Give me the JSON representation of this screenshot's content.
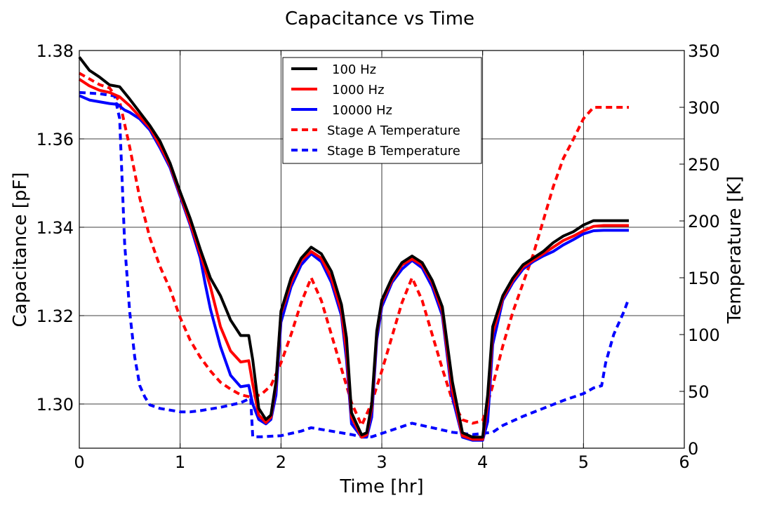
{
  "chart_data": {
    "type": "line",
    "title": "Capacitance vs Time",
    "xlabel": "Time [hr]",
    "ylabel": "Capacitance [pF]",
    "y2label": "Temperature [K]",
    "xlim": [
      0,
      6
    ],
    "ylim": [
      1.29,
      1.38
    ],
    "y2lim": [
      0,
      350
    ],
    "xticks": [
      0,
      1,
      2,
      3,
      4,
      5,
      6
    ],
    "yticks": [
      1.3,
      1.32,
      1.34,
      1.36,
      1.38
    ],
    "ytick_labels": [
      "1.30",
      "1.32",
      "1.34",
      "1.36",
      "1.38"
    ],
    "y2ticks": [
      0,
      50,
      100,
      150,
      200,
      250,
      300,
      350
    ],
    "grid": true,
    "legend": "upper-center",
    "series": [
      {
        "name": "100 Hz",
        "axis": "left",
        "color": "#000000",
        "dash": "solid",
        "points": [
          [
            0,
            1.3785
          ],
          [
            0.1,
            1.3755
          ],
          [
            0.2,
            1.374
          ],
          [
            0.3,
            1.3722
          ],
          [
            0.35,
            1.372
          ],
          [
            0.4,
            1.3718
          ],
          [
            0.5,
            1.369
          ],
          [
            0.6,
            1.366
          ],
          [
            0.7,
            1.363
          ],
          [
            0.8,
            1.3595
          ],
          [
            0.9,
            1.3545
          ],
          [
            1.0,
            1.348
          ],
          [
            1.1,
            1.342
          ],
          [
            1.2,
            1.335
          ],
          [
            1.3,
            1.3285
          ],
          [
            1.4,
            1.3245
          ],
          [
            1.5,
            1.319
          ],
          [
            1.6,
            1.3155
          ],
          [
            1.68,
            1.3155
          ],
          [
            1.72,
            1.31
          ],
          [
            1.78,
            1.299
          ],
          [
            1.85,
            1.2965
          ],
          [
            1.9,
            1.2975
          ],
          [
            1.95,
            1.305
          ],
          [
            2.0,
            1.321
          ],
          [
            2.1,
            1.3285
          ],
          [
            2.2,
            1.333
          ],
          [
            2.3,
            1.3355
          ],
          [
            2.4,
            1.334
          ],
          [
            2.5,
            1.33
          ],
          [
            2.6,
            1.3225
          ],
          [
            2.65,
            1.315
          ],
          [
            2.7,
            1.298
          ],
          [
            2.8,
            1.293
          ],
          [
            2.85,
            1.2935
          ],
          [
            2.9,
            1.3
          ],
          [
            2.95,
            1.3165
          ],
          [
            3.0,
            1.3235
          ],
          [
            3.1,
            1.3285
          ],
          [
            3.2,
            1.332
          ],
          [
            3.3,
            1.3335
          ],
          [
            3.4,
            1.332
          ],
          [
            3.5,
            1.328
          ],
          [
            3.6,
            1.322
          ],
          [
            3.7,
            1.305
          ],
          [
            3.8,
            1.2935
          ],
          [
            3.9,
            1.2925
          ],
          [
            4.0,
            1.2925
          ],
          [
            4.05,
            1.302
          ],
          [
            4.1,
            1.3175
          ],
          [
            4.2,
            1.3245
          ],
          [
            4.3,
            1.3285
          ],
          [
            4.4,
            1.3315
          ],
          [
            4.5,
            1.333
          ],
          [
            4.6,
            1.3345
          ],
          [
            4.7,
            1.3365
          ],
          [
            4.8,
            1.338
          ],
          [
            4.9,
            1.339
          ],
          [
            5.0,
            1.3405
          ],
          [
            5.1,
            1.3415
          ],
          [
            5.2,
            1.3415
          ],
          [
            5.45,
            1.3415
          ]
        ]
      },
      {
        "name": "1000 Hz",
        "axis": "left",
        "color": "#ff0000",
        "dash": "solid",
        "points": [
          [
            0,
            1.3735
          ],
          [
            0.1,
            1.372
          ],
          [
            0.2,
            1.371
          ],
          [
            0.3,
            1.3705
          ],
          [
            0.4,
            1.3695
          ],
          [
            0.5,
            1.3675
          ],
          [
            0.6,
            1.365
          ],
          [
            0.7,
            1.3625
          ],
          [
            0.8,
            1.3585
          ],
          [
            0.9,
            1.354
          ],
          [
            1.0,
            1.3475
          ],
          [
            1.1,
            1.341
          ],
          [
            1.2,
            1.334
          ],
          [
            1.3,
            1.3265
          ],
          [
            1.4,
            1.3175
          ],
          [
            1.5,
            1.312
          ],
          [
            1.6,
            1.3095
          ],
          [
            1.68,
            1.3098
          ],
          [
            1.72,
            1.3045
          ],
          [
            1.78,
            1.2975
          ],
          [
            1.85,
            1.2958
          ],
          [
            1.9,
            1.297
          ],
          [
            1.95,
            1.3045
          ],
          [
            2.0,
            1.3205
          ],
          [
            2.1,
            1.3275
          ],
          [
            2.2,
            1.3325
          ],
          [
            2.3,
            1.3345
          ],
          [
            2.4,
            1.333
          ],
          [
            2.5,
            1.3285
          ],
          [
            2.6,
            1.321
          ],
          [
            2.65,
            1.312
          ],
          [
            2.7,
            1.297
          ],
          [
            2.8,
            1.2925
          ],
          [
            2.85,
            1.293
          ],
          [
            2.9,
            1.299
          ],
          [
            2.95,
            1.316
          ],
          [
            3.0,
            1.323
          ],
          [
            3.1,
            1.328
          ],
          [
            3.2,
            1.3315
          ],
          [
            3.3,
            1.3328
          ],
          [
            3.4,
            1.3315
          ],
          [
            3.5,
            1.3275
          ],
          [
            3.6,
            1.321
          ],
          [
            3.7,
            1.303
          ],
          [
            3.8,
            1.2928
          ],
          [
            3.9,
            1.292
          ],
          [
            4.0,
            1.292
          ],
          [
            4.05,
            1.3
          ],
          [
            4.1,
            1.316
          ],
          [
            4.2,
            1.324
          ],
          [
            4.3,
            1.328
          ],
          [
            4.4,
            1.331
          ],
          [
            4.5,
            1.3325
          ],
          [
            4.6,
            1.334
          ],
          [
            4.7,
            1.3355
          ],
          [
            4.8,
            1.337
          ],
          [
            4.9,
            1.338
          ],
          [
            5.0,
            1.3392
          ],
          [
            5.1,
            1.3402
          ],
          [
            5.2,
            1.3404
          ],
          [
            5.45,
            1.3404
          ]
        ]
      },
      {
        "name": "10000 Hz",
        "axis": "left",
        "color": "#0000ff",
        "dash": "solid",
        "points": [
          [
            0,
            1.3698
          ],
          [
            0.1,
            1.3688
          ],
          [
            0.2,
            1.3684
          ],
          [
            0.3,
            1.368
          ],
          [
            0.38,
            1.3678
          ],
          [
            0.45,
            1.3665
          ],
          [
            0.5,
            1.366
          ],
          [
            0.6,
            1.3645
          ],
          [
            0.7,
            1.362
          ],
          [
            0.8,
            1.358
          ],
          [
            0.9,
            1.3535
          ],
          [
            1.0,
            1.347
          ],
          [
            1.1,
            1.3405
          ],
          [
            1.2,
            1.333
          ],
          [
            1.25,
            1.327
          ],
          [
            1.3,
            1.3215
          ],
          [
            1.4,
            1.313
          ],
          [
            1.5,
            1.3065
          ],
          [
            1.6,
            1.3039
          ],
          [
            1.68,
            1.3042
          ],
          [
            1.72,
            1.3
          ],
          [
            1.78,
            1.2965
          ],
          [
            1.85,
            1.2955
          ],
          [
            1.9,
            1.2965
          ],
          [
            1.95,
            1.302
          ],
          [
            2.0,
            1.3185
          ],
          [
            2.1,
            1.3265
          ],
          [
            2.2,
            1.3315
          ],
          [
            2.3,
            1.334
          ],
          [
            2.4,
            1.3322
          ],
          [
            2.5,
            1.3275
          ],
          [
            2.6,
            1.32
          ],
          [
            2.65,
            1.31
          ],
          [
            2.7,
            1.2955
          ],
          [
            2.8,
            1.2925
          ],
          [
            2.85,
            1.2925
          ],
          [
            2.9,
            1.297
          ],
          [
            2.95,
            1.3145
          ],
          [
            3.0,
            1.322
          ],
          [
            3.1,
            1.3275
          ],
          [
            3.2,
            1.3305
          ],
          [
            3.3,
            1.3325
          ],
          [
            3.4,
            1.3308
          ],
          [
            3.5,
            1.3265
          ],
          [
            3.6,
            1.32
          ],
          [
            3.7,
            1.3015
          ],
          [
            3.8,
            1.2925
          ],
          [
            3.9,
            1.2918
          ],
          [
            4.0,
            1.2918
          ],
          [
            4.05,
            1.296
          ],
          [
            4.1,
            1.3135
          ],
          [
            4.2,
            1.3235
          ],
          [
            4.3,
            1.3275
          ],
          [
            4.4,
            1.3305
          ],
          [
            4.5,
            1.3322
          ],
          [
            4.6,
            1.3335
          ],
          [
            4.7,
            1.3345
          ],
          [
            4.8,
            1.336
          ],
          [
            4.9,
            1.3372
          ],
          [
            5.0,
            1.3385
          ],
          [
            5.1,
            1.3392
          ],
          [
            5.2,
            1.3393
          ],
          [
            5.45,
            1.3393
          ]
        ]
      },
      {
        "name": "Stage A Temperature",
        "axis": "right",
        "color": "#ff0000",
        "dash": "dashed",
        "points": [
          [
            0,
            330
          ],
          [
            0.1,
            325
          ],
          [
            0.2,
            320
          ],
          [
            0.3,
            317
          ],
          [
            0.4,
            305
          ],
          [
            0.5,
            265
          ],
          [
            0.6,
            220
          ],
          [
            0.7,
            185
          ],
          [
            0.8,
            160
          ],
          [
            0.9,
            140
          ],
          [
            1.0,
            115
          ],
          [
            1.1,
            95
          ],
          [
            1.2,
            80
          ],
          [
            1.3,
            68
          ],
          [
            1.4,
            58
          ],
          [
            1.5,
            52
          ],
          [
            1.6,
            47
          ],
          [
            1.7,
            45
          ],
          [
            1.8,
            47
          ],
          [
            1.9,
            55
          ],
          [
            2.0,
            75
          ],
          [
            2.1,
            100
          ],
          [
            2.2,
            128
          ],
          [
            2.3,
            150
          ],
          [
            2.4,
            130
          ],
          [
            2.5,
            100
          ],
          [
            2.6,
            70
          ],
          [
            2.7,
            40
          ],
          [
            2.8,
            20
          ],
          [
            2.9,
            40
          ],
          [
            3.0,
            68
          ],
          [
            3.1,
            98
          ],
          [
            3.2,
            128
          ],
          [
            3.3,
            150
          ],
          [
            3.4,
            130
          ],
          [
            3.5,
            100
          ],
          [
            3.6,
            70
          ],
          [
            3.7,
            42
          ],
          [
            3.8,
            25
          ],
          [
            3.9,
            22
          ],
          [
            4.0,
            24
          ],
          [
            4.1,
            55
          ],
          [
            4.2,
            90
          ],
          [
            4.3,
            120
          ],
          [
            4.4,
            145
          ],
          [
            4.5,
            170
          ],
          [
            4.6,
            200
          ],
          [
            4.7,
            230
          ],
          [
            4.8,
            255
          ],
          [
            4.9,
            272
          ],
          [
            5.0,
            290
          ],
          [
            5.1,
            300
          ],
          [
            5.45,
            300
          ]
        ]
      },
      {
        "name": "Stage B Temperature",
        "axis": "right",
        "color": "#0000ff",
        "dash": "dashed",
        "points": [
          [
            0,
            313
          ],
          [
            0.2,
            312
          ],
          [
            0.35,
            310
          ],
          [
            0.4,
            290
          ],
          [
            0.45,
            180
          ],
          [
            0.5,
            120
          ],
          [
            0.55,
            80
          ],
          [
            0.6,
            55
          ],
          [
            0.65,
            45
          ],
          [
            0.7,
            38
          ],
          [
            0.8,
            35
          ],
          [
            1.0,
            32
          ],
          [
            1.1,
            32
          ],
          [
            1.2,
            33
          ],
          [
            1.4,
            36
          ],
          [
            1.6,
            40
          ],
          [
            1.7,
            44
          ],
          [
            1.72,
            10
          ],
          [
            1.8,
            10
          ],
          [
            2.0,
            11
          ],
          [
            2.2,
            15
          ],
          [
            2.3,
            18
          ],
          [
            2.5,
            15
          ],
          [
            2.7,
            12
          ],
          [
            2.8,
            10
          ],
          [
            2.9,
            10
          ],
          [
            3.1,
            16
          ],
          [
            3.3,
            22
          ],
          [
            3.5,
            18
          ],
          [
            3.7,
            14
          ],
          [
            3.9,
            12
          ],
          [
            4.0,
            13
          ],
          [
            4.1,
            14
          ],
          [
            4.2,
            20
          ],
          [
            4.4,
            28
          ],
          [
            4.6,
            35
          ],
          [
            4.8,
            42
          ],
          [
            5.0,
            48
          ],
          [
            5.1,
            53
          ],
          [
            5.18,
            55
          ],
          [
            5.22,
            75
          ],
          [
            5.3,
            100
          ],
          [
            5.4,
            120
          ],
          [
            5.45,
            132
          ]
        ]
      }
    ]
  }
}
